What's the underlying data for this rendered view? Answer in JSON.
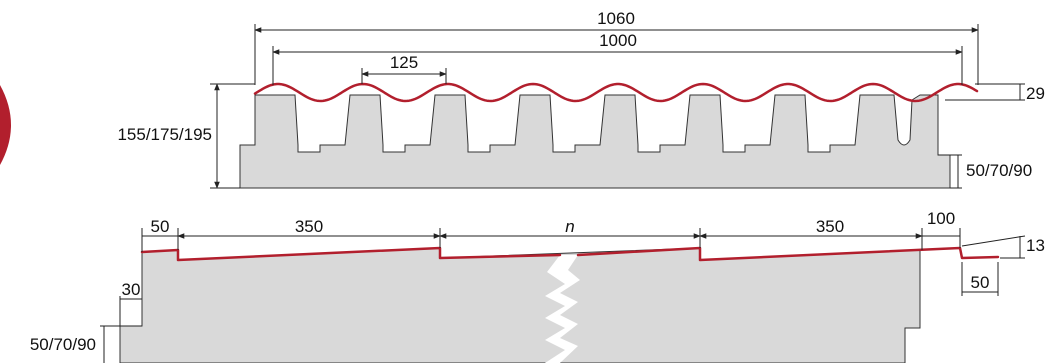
{
  "colors": {
    "roof_line": "#b21f2d",
    "panel_fill": "#d9d9d9",
    "outline": "#333333",
    "background": "#ffffff"
  },
  "top_view": {
    "dimensions": {
      "overall_width": "1060",
      "covering_width": "1000",
      "wave_pitch": "125",
      "wave_height": "29",
      "total_thickness": "155/175/195",
      "base_thickness": "50/70/90"
    }
  },
  "bottom_view": {
    "dimensions": {
      "left_overlap": "50",
      "left_segment": "350",
      "middle_variable": "n",
      "right_segment": "350",
      "right_overlap": "100",
      "step_height": "13",
      "right_tail": "50",
      "left_step": "30",
      "base_thickness": "50/70/90"
    }
  }
}
